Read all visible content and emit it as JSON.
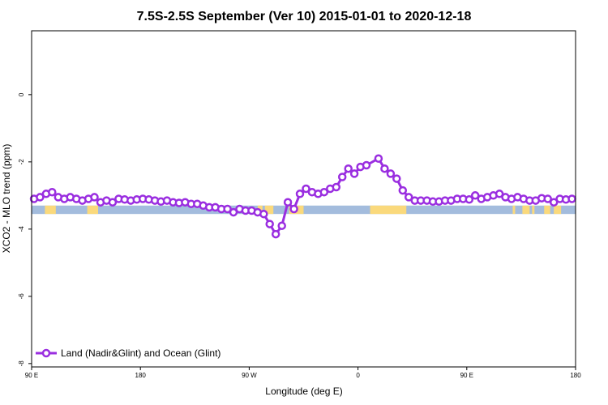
{
  "chart_data": {
    "type": "line",
    "title": "7.5S-2.5S September (Ver 10)   2015-01-01 to 2020-12-18",
    "xlabel": "Longitude (deg E)",
    "ylabel": "XCO2 - MLO trend (ppm)",
    "xlim": [
      90,
      540
    ],
    "ylim": [
      -8.1,
      1.9
    ],
    "x_ticks": [
      {
        "value": 90,
        "label": "90 E"
      },
      {
        "value": 180,
        "label": "180"
      },
      {
        "value": 270,
        "label": "90 W"
      },
      {
        "value": 360,
        "label": "0"
      },
      {
        "value": 450,
        "label": "90 E"
      },
      {
        "value": 540,
        "label": "180"
      }
    ],
    "y_ticks": [
      {
        "value": 0,
        "label": "0"
      },
      {
        "value": -2,
        "label": "-2"
      },
      {
        "value": -4,
        "label": "-4"
      },
      {
        "value": -6,
        "label": "-6"
      },
      {
        "value": -8,
        "label": "-8"
      }
    ],
    "grid": false,
    "legend": {
      "position": "bottom-left",
      "entries": [
        "Land (Nadir&Glint) and Ocean (Glint)"
      ]
    },
    "series": [
      {
        "name": "Land (Nadir&Glint) and Ocean (Glint)",
        "color": "#9a2ee0",
        "x": [
          92,
          97,
          102,
          107,
          112,
          117,
          122,
          127,
          132,
          137,
          142,
          147,
          152,
          157,
          162,
          167,
          172,
          177,
          182,
          187,
          192,
          197,
          202,
          207,
          212,
          217,
          222,
          227,
          232,
          237,
          242,
          247,
          252,
          257,
          262,
          267,
          272,
          277,
          282,
          287,
          292,
          297,
          302,
          307,
          312,
          317,
          322,
          327,
          332,
          337,
          342,
          347,
          352,
          357,
          362,
          367,
          377,
          382,
          387,
          392,
          397,
          402,
          407,
          412,
          417,
          422,
          427,
          432,
          437,
          442,
          447,
          452,
          457,
          462,
          467,
          472,
          477,
          482,
          487,
          492,
          497,
          502,
          507,
          512,
          517,
          522,
          527,
          532,
          537
        ],
        "y": [
          -3.1,
          -3.05,
          -2.95,
          -2.9,
          -3.05,
          -3.1,
          -3.05,
          -3.1,
          -3.15,
          -3.1,
          -3.05,
          -3.2,
          -3.15,
          -3.2,
          -3.1,
          -3.12,
          -3.15,
          -3.12,
          -3.1,
          -3.12,
          -3.15,
          -3.18,
          -3.15,
          -3.2,
          -3.22,
          -3.2,
          -3.25,
          -3.25,
          -3.3,
          -3.35,
          -3.35,
          -3.4,
          -3.4,
          -3.5,
          -3.4,
          -3.45,
          -3.45,
          -3.5,
          -3.55,
          -3.85,
          -4.15,
          -3.9,
          -3.2,
          -3.4,
          -2.95,
          -2.8,
          -2.9,
          -2.95,
          -2.9,
          -2.8,
          -2.75,
          -2.45,
          -2.2,
          -2.35,
          -2.15,
          -2.1,
          -1.9,
          -2.2,
          -2.35,
          -2.5,
          -2.85,
          -3.05,
          -3.15,
          -3.15,
          -3.15,
          -3.18,
          -3.18,
          -3.15,
          -3.15,
          -3.1,
          -3.1,
          -3.12,
          -3.0,
          -3.1,
          -3.05,
          -3.0,
          -2.95,
          -3.05,
          -3.1,
          -3.05,
          -3.1,
          -3.15,
          -3.15,
          -3.08,
          -3.1,
          -3.2,
          -3.1,
          -3.12,
          -3.1
        ]
      }
    ],
    "surface_band": {
      "y_range": [
        -3.55,
        -3.3
      ],
      "ocean_color": "#a3bcdd",
      "land_color": "#fad97c",
      "land_segments": [
        [
          101,
          110
        ],
        [
          136,
          145
        ],
        [
          277,
          281
        ],
        [
          283,
          290
        ],
        [
          303,
          315
        ],
        [
          370,
          400
        ],
        [
          488,
          490
        ],
        [
          496,
          502
        ],
        [
          504,
          506
        ],
        [
          514,
          519
        ],
        [
          522,
          528
        ]
      ]
    }
  }
}
